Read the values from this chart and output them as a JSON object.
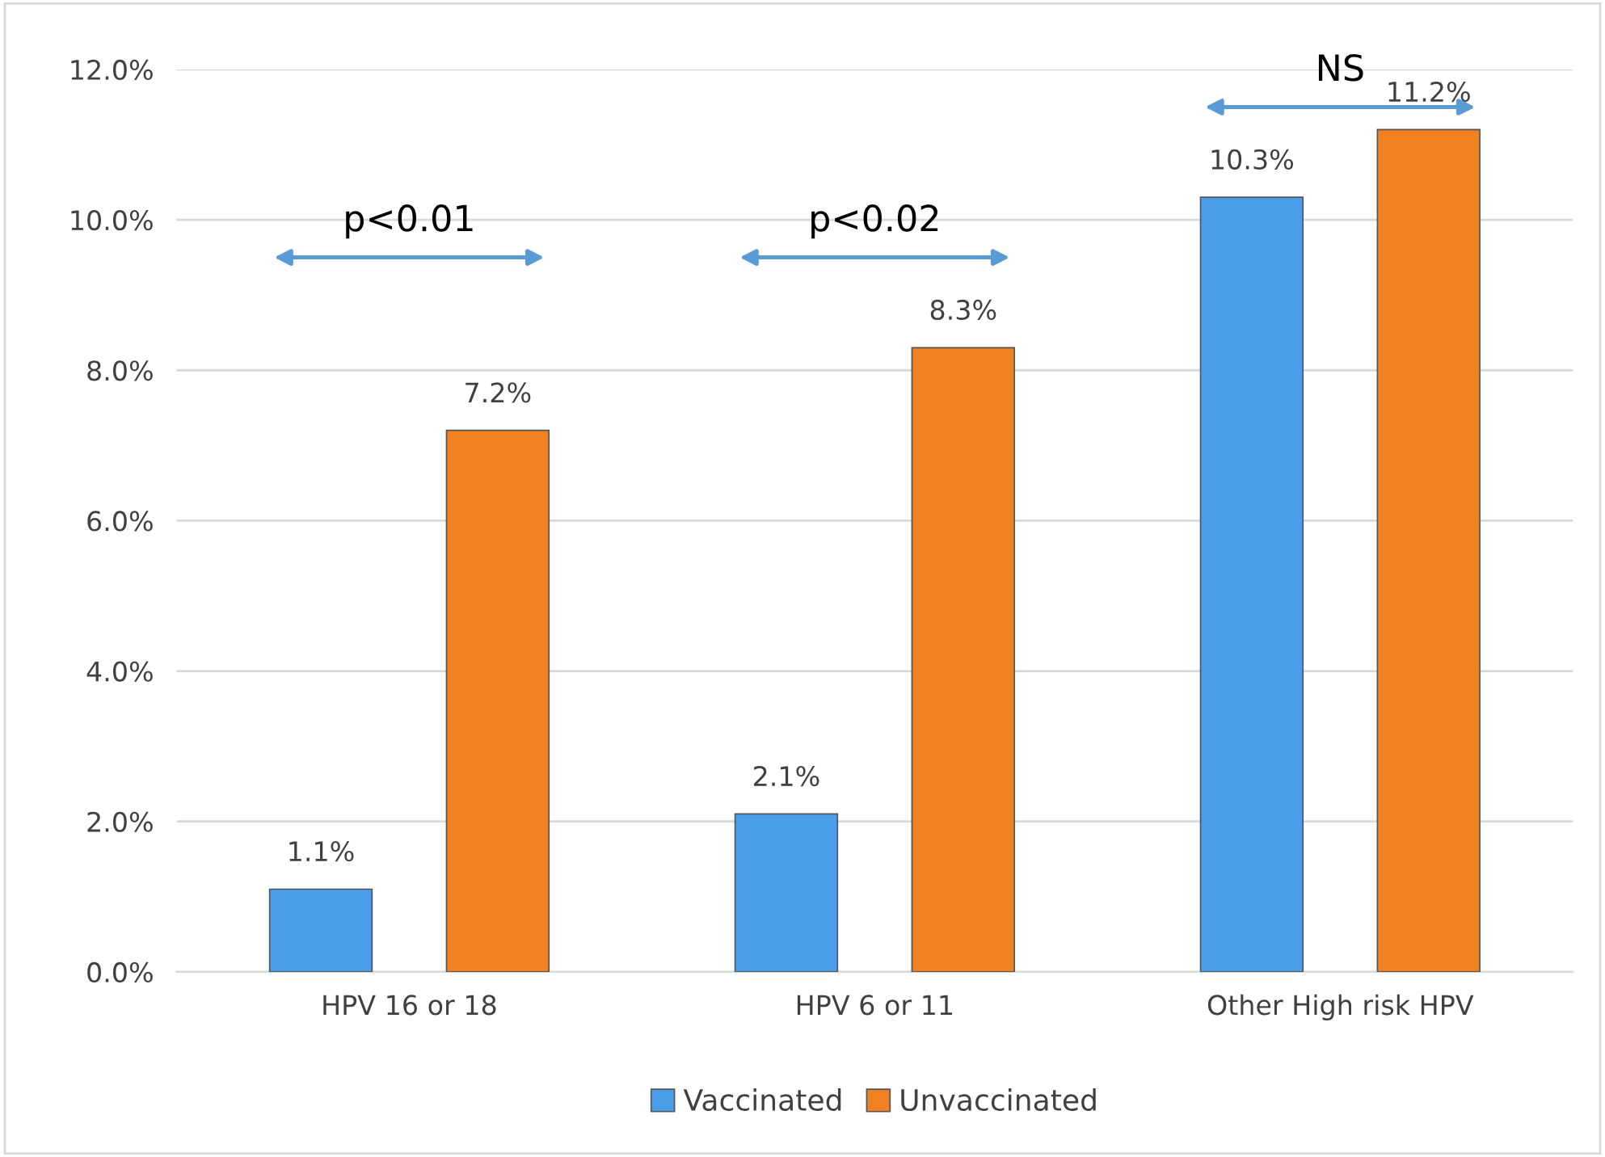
{
  "chart_data": {
    "type": "bar",
    "categories": [
      "HPV 16 or 18",
      "HPV 6 or 11",
      "Other High risk HPV"
    ],
    "series": [
      {
        "name": "Vaccinated",
        "color": "#4a9de8",
        "values": [
          1.1,
          2.1,
          10.3
        ],
        "value_labels": [
          "1.1%",
          "2.1%",
          "10.3%"
        ]
      },
      {
        "name": "Unvaccinated",
        "color": "#f08020",
        "values": [
          7.2,
          8.3,
          11.2
        ],
        "value_labels": [
          "7.2%",
          "8.3%",
          "11.2%"
        ]
      }
    ],
    "ylim": [
      0,
      12
    ],
    "yticks": [
      {
        "value": 0,
        "label": "0.0%"
      },
      {
        "value": 2,
        "label": "2.0%"
      },
      {
        "value": 4,
        "label": "4.0%"
      },
      {
        "value": 6,
        "label": "6.0%"
      },
      {
        "value": 8,
        "label": "8.0%"
      },
      {
        "value": 10,
        "label": "10.0%"
      },
      {
        "value": 12,
        "label": "12.0%"
      }
    ],
    "grid": "y",
    "legend": "bottom",
    "annotations": [
      "p<0.01",
      "p<0.02",
      "NS"
    ]
  }
}
